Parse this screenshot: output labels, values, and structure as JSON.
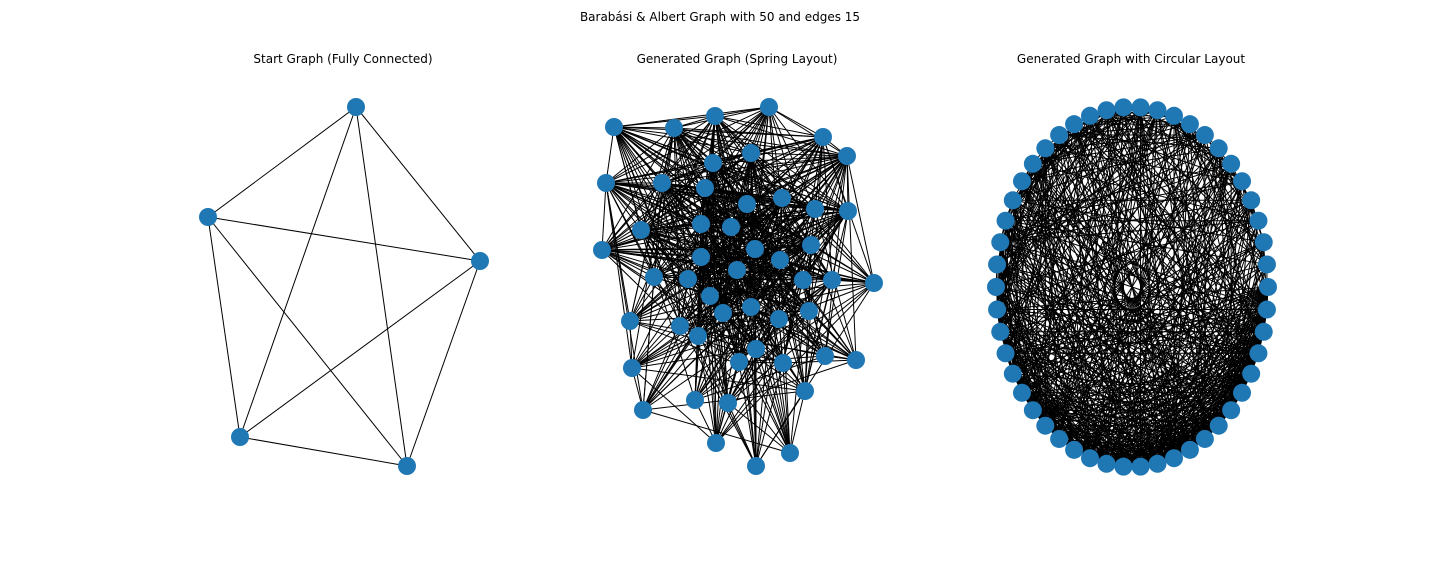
{
  "figure": {
    "title": "Barabási & Albert Graph with 50 and edges 15"
  },
  "style": {
    "node_color": "#1f77b4",
    "edge_color": "#000000"
  },
  "panels": [
    {
      "id": "start",
      "title": "Start Graph (Fully Connected)",
      "node_count": 5,
      "edges": "complete"
    },
    {
      "id": "spring",
      "title": "Generated Graph (Spring Layout)",
      "node_count": 50
    },
    {
      "id": "circular",
      "title": "Generated Graph with Circular Layout",
      "node_count": 50
    }
  ]
}
